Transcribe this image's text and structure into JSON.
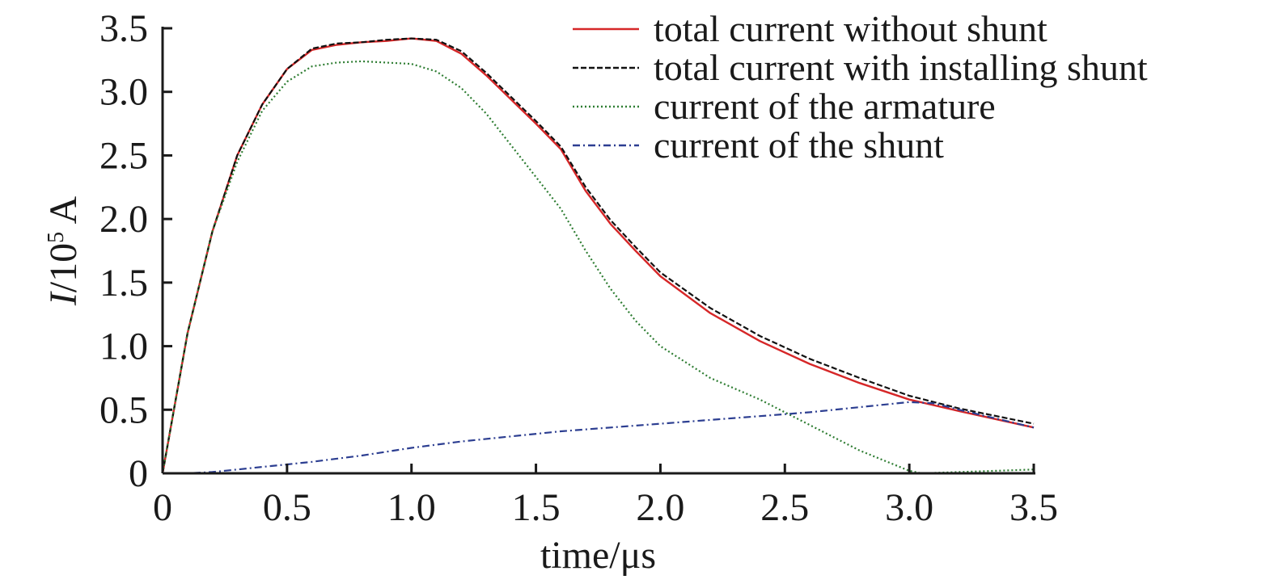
{
  "chart_data": {
    "type": "line",
    "title": "",
    "xlabel": "time/μs",
    "ylabel": {
      "symbol": "I",
      "base": "/10",
      "exponent": "5",
      "unit": " A"
    },
    "xlim": [
      0,
      3.5
    ],
    "ylim": [
      0,
      3.5
    ],
    "xticks": [
      0,
      0.5,
      1.0,
      1.5,
      2.0,
      2.5,
      3.0,
      3.5
    ],
    "xtick_labels": [
      "0",
      "0.5",
      "1.0",
      "1.5",
      "2.0",
      "2.5",
      "3.0",
      "3.5"
    ],
    "yticks": [
      0,
      0.5,
      1.0,
      1.5,
      2.0,
      2.5,
      3.0,
      3.5
    ],
    "ytick_labels": [
      "0",
      "0.5",
      "1.0",
      "1.5",
      "2.0",
      "2.5",
      "3.0",
      "3.5"
    ],
    "grid": false,
    "legend": "top-right",
    "series": [
      {
        "name": "total current without shunt",
        "color": "#d62728",
        "dash": "solid",
        "x": [
          0,
          0.1,
          0.2,
          0.3,
          0.4,
          0.5,
          0.6,
          0.7,
          0.8,
          0.9,
          1.0,
          1.1,
          1.2,
          1.3,
          1.4,
          1.5,
          1.6,
          1.7,
          1.8,
          1.9,
          2.0,
          2.2,
          2.4,
          2.6,
          2.8,
          3.0,
          3.2,
          3.5
        ],
        "y": [
          0,
          1.1,
          1.9,
          2.5,
          2.9,
          3.18,
          3.33,
          3.37,
          3.39,
          3.4,
          3.42,
          3.4,
          3.3,
          3.13,
          2.94,
          2.75,
          2.55,
          2.22,
          1.96,
          1.75,
          1.55,
          1.26,
          1.04,
          0.86,
          0.71,
          0.58,
          0.49,
          0.36
        ]
      },
      {
        "name": "total current with installing shunt",
        "color": "#111111",
        "dash": "dashed",
        "x": [
          0,
          0.1,
          0.2,
          0.3,
          0.4,
          0.5,
          0.6,
          0.7,
          0.8,
          0.9,
          1.0,
          1.1,
          1.2,
          1.3,
          1.4,
          1.5,
          1.6,
          1.7,
          1.8,
          1.9,
          2.0,
          2.2,
          2.4,
          2.6,
          2.8,
          3.0,
          3.2,
          3.5
        ],
        "y": [
          0,
          1.1,
          1.9,
          2.5,
          2.9,
          3.18,
          3.34,
          3.38,
          3.39,
          3.41,
          3.42,
          3.41,
          3.32,
          3.15,
          2.96,
          2.77,
          2.57,
          2.25,
          1.99,
          1.78,
          1.58,
          1.3,
          1.08,
          0.9,
          0.75,
          0.61,
          0.51,
          0.39
        ]
      },
      {
        "name": "current of the armature",
        "color": "#2e7d32",
        "dash": "dotted",
        "x": [
          0,
          0.1,
          0.2,
          0.3,
          0.4,
          0.5,
          0.6,
          0.7,
          0.8,
          0.9,
          1.0,
          1.1,
          1.2,
          1.3,
          1.4,
          1.5,
          1.6,
          1.7,
          1.8,
          1.9,
          2.0,
          2.2,
          2.4,
          2.6,
          2.8,
          3.0,
          3.05,
          3.2,
          3.5
        ],
        "y": [
          0,
          1.1,
          1.9,
          2.45,
          2.85,
          3.08,
          3.2,
          3.23,
          3.24,
          3.23,
          3.22,
          3.16,
          3.03,
          2.83,
          2.58,
          2.33,
          2.08,
          1.75,
          1.45,
          1.2,
          1.0,
          0.75,
          0.58,
          0.38,
          0.18,
          0.02,
          0.0,
          0.01,
          0.03
        ]
      },
      {
        "name": "current of the shunt",
        "color": "#2c3e91",
        "dash": "dashdot",
        "x": [
          0,
          0.1,
          0.2,
          0.3,
          0.4,
          0.5,
          0.6,
          0.8,
          1.0,
          1.2,
          1.4,
          1.6,
          1.8,
          2.0,
          2.2,
          2.4,
          2.6,
          2.8,
          3.0,
          3.1,
          3.2,
          3.5
        ],
        "y": [
          0,
          0.0,
          0.01,
          0.03,
          0.05,
          0.07,
          0.09,
          0.14,
          0.2,
          0.25,
          0.29,
          0.33,
          0.36,
          0.39,
          0.42,
          0.45,
          0.48,
          0.52,
          0.56,
          0.55,
          0.5,
          0.36
        ]
      }
    ]
  }
}
